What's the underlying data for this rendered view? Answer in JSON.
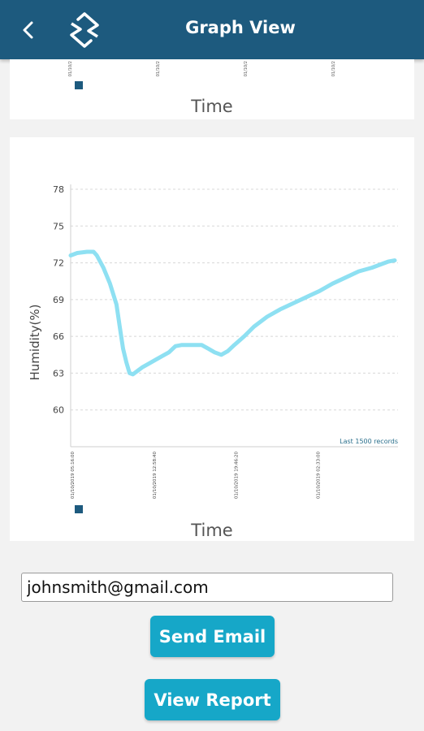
{
  "header": {
    "title": "Graph View",
    "back_icon": "back-arrow-icon",
    "logo_icon": "brand-logo-icon",
    "background": "#1d5a7e"
  },
  "top_chart": {
    "xlabel": "Time",
    "tick_labels": [
      "01/10/2",
      "01/10/2",
      "01/10/2",
      "01/10/2"
    ]
  },
  "chart_data": {
    "type": "line",
    "title": "",
    "xlabel": "Time",
    "ylabel": "Humidity(%)",
    "ylim": [
      57,
      78
    ],
    "yticks": [
      60,
      63,
      66,
      69,
      72,
      75,
      78
    ],
    "xtick_labels": [
      "01/10/2019 05:16:00",
      "01/10/2019 12:58:40",
      "01/10/2019 19:46:20",
      "01/10/2019 02:33:00"
    ],
    "xtick_fractions": [
      0.0,
      0.25,
      0.5,
      0.75
    ],
    "annotation": "Last 1500 records",
    "grid": true,
    "line_color": "#8ee0f2",
    "series": [
      {
        "x": [
          0.0,
          0.02,
          0.05,
          0.07,
          0.08,
          0.1,
          0.12,
          0.14,
          0.15,
          0.16,
          0.17,
          0.18,
          0.19,
          0.2,
          0.21,
          0.22,
          0.24,
          0.26,
          0.28,
          0.3,
          0.32,
          0.34,
          0.36,
          0.38,
          0.4,
          0.42,
          0.44,
          0.46,
          0.48,
          0.5,
          0.53,
          0.56,
          0.6,
          0.64,
          0.68,
          0.72,
          0.76,
          0.8,
          0.84,
          0.88,
          0.92,
          0.95,
          0.97,
          0.99
        ],
        "values": [
          72.6,
          72.8,
          72.9,
          72.9,
          72.6,
          71.6,
          70.3,
          68.6,
          66.8,
          65.0,
          63.9,
          63.0,
          62.9,
          63.1,
          63.3,
          63.5,
          63.8,
          64.1,
          64.4,
          64.7,
          65.2,
          65.3,
          65.3,
          65.3,
          65.3,
          65.0,
          64.7,
          64.5,
          64.8,
          65.3,
          66.0,
          66.8,
          67.6,
          68.2,
          68.7,
          69.2,
          69.7,
          70.3,
          70.8,
          71.3,
          71.6,
          71.9,
          72.1,
          72.2
        ]
      }
    ]
  },
  "email": {
    "value": "johnsmith@gmail.com"
  },
  "buttons": {
    "send_email": "Send Email",
    "view_report": "View Report"
  },
  "colors": {
    "accent": "#16a7c8",
    "card": "#ffffff",
    "background": "#f2f2f2"
  }
}
